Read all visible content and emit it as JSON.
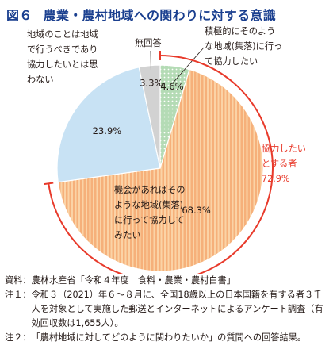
{
  "header": {
    "figure_number": "図６",
    "title": "農業・農村地域への関わりに対する意識"
  },
  "colors": {
    "title": "#1a3f8f",
    "orange": "#f6b07a",
    "orange_stripe": "#fbd3a6",
    "blue": "#c8e2f4",
    "gray": "#d2d2d2",
    "green": "#b4dbb5",
    "accent_red": "#e83a2b"
  },
  "chart_data": {
    "type": "pie",
    "title": "農業・農村地域への関わりに対する意識",
    "slices": [
      {
        "label": "積極的にそのような地域(集落)に行って協力したい",
        "value": 4.6,
        "value_label": "4.6%"
      },
      {
        "label": "機会があればそのような地域(集落)に行って協力してみたい",
        "value": 68.3,
        "value_label": "68.3%"
      },
      {
        "label": "地域のことは地域で行うべきであり協力したいとは思わない",
        "value": 23.9,
        "value_label": "23.9%"
      },
      {
        "label": "無回答",
        "value": 3.3,
        "value_label": "3.3%"
      }
    ],
    "group_bracket": {
      "label_lines": [
        "協力したい",
        "とする者",
        "72.9%"
      ],
      "value": 72.9
    }
  },
  "callouts": {
    "active": [
      "積極的にそのよう",
      "な地域(集落)に行っ",
      "て協力したい"
    ],
    "chance": [
      "機会があればその",
      "ような地域(集落)",
      "に行って協力して",
      "みたい"
    ],
    "no": [
      "地域のことは地域",
      "で行うべきであり",
      "協力したいとは思",
      "わない"
    ],
    "noanswer": "無回答"
  },
  "notes": [
    {
      "head": "資料：",
      "body": "農林水産省「令和４年度　食料・農業・農村白書」"
    },
    {
      "head": "注１：",
      "body": "令和３（2021）年６～８月に、全国18歳以上の日本国籍を有する者３千人を対象として実施した郵送とインターネットによるアンケート調査（有効回収数は1,655人）。"
    },
    {
      "head": "注２：",
      "body": "「農村地域に対してどのように関わりたいか」の質問への回答結果。"
    }
  ]
}
